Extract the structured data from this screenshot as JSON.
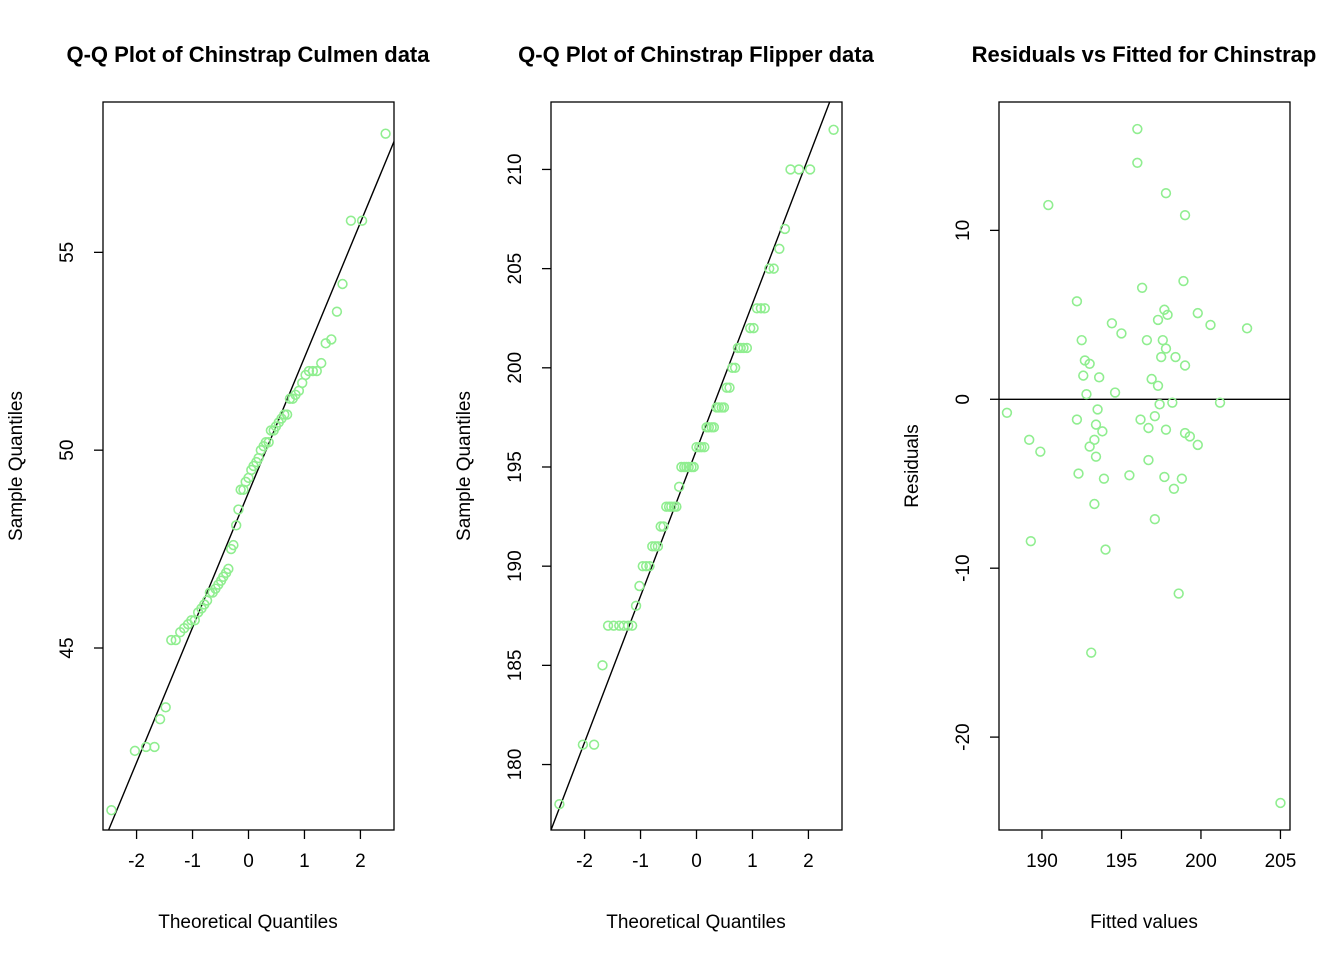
{
  "figure": {
    "point_color": "#90EE90",
    "line_color": "#000000"
  },
  "chart_data": [
    {
      "type": "scatter",
      "id": "culmen",
      "title": "Q-Q Plot of Chinstrap Culmen data",
      "xlabel": "Theoretical Quantiles",
      "ylabel": "Sample Quantiles",
      "xlim": [
        -2.6,
        2.6
      ],
      "ylim": [
        40.4,
        58.8
      ],
      "xticks": [
        -2,
        -1,
        0,
        1,
        2
      ],
      "yticks": [
        45,
        50,
        55
      ],
      "grid": false,
      "ref_line": {
        "kind": "line",
        "x1": -2.5,
        "y1": 40.4,
        "x2": 2.6,
        "y2": 57.8
      },
      "points": [
        [
          -2.45,
          40.9
        ],
        [
          -2.03,
          42.4
        ],
        [
          -1.83,
          42.5
        ],
        [
          -1.68,
          42.5
        ],
        [
          -1.58,
          43.2
        ],
        [
          -1.48,
          43.5
        ],
        [
          -1.38,
          45.2
        ],
        [
          -1.3,
          45.2
        ],
        [
          -1.22,
          45.4
        ],
        [
          -1.15,
          45.5
        ],
        [
          -1.08,
          45.6
        ],
        [
          -1.02,
          45.7
        ],
        [
          -0.96,
          45.7
        ],
        [
          -0.9,
          45.9
        ],
        [
          -0.84,
          46.0
        ],
        [
          -0.79,
          46.1
        ],
        [
          -0.74,
          46.2
        ],
        [
          -0.69,
          46.4
        ],
        [
          -0.64,
          46.4
        ],
        [
          -0.59,
          46.5
        ],
        [
          -0.54,
          46.6
        ],
        [
          -0.49,
          46.7
        ],
        [
          -0.45,
          46.8
        ],
        [
          -0.4,
          46.9
        ],
        [
          -0.36,
          47.0
        ],
        [
          -0.31,
          47.5
        ],
        [
          -0.27,
          47.6
        ],
        [
          -0.22,
          48.1
        ],
        [
          -0.18,
          48.5
        ],
        [
          -0.14,
          49.0
        ],
        [
          -0.09,
          49.0
        ],
        [
          -0.05,
          49.2
        ],
        [
          0.0,
          49.3
        ],
        [
          0.05,
          49.5
        ],
        [
          0.09,
          49.6
        ],
        [
          0.14,
          49.7
        ],
        [
          0.18,
          49.8
        ],
        [
          0.22,
          50.0
        ],
        [
          0.27,
          50.1
        ],
        [
          0.31,
          50.2
        ],
        [
          0.36,
          50.2
        ],
        [
          0.4,
          50.5
        ],
        [
          0.45,
          50.5
        ],
        [
          0.49,
          50.6
        ],
        [
          0.54,
          50.7
        ],
        [
          0.59,
          50.8
        ],
        [
          0.64,
          50.9
        ],
        [
          0.69,
          50.9
        ],
        [
          0.74,
          51.3
        ],
        [
          0.79,
          51.3
        ],
        [
          0.84,
          51.4
        ],
        [
          0.9,
          51.5
        ],
        [
          0.96,
          51.7
        ],
        [
          1.02,
          51.9
        ],
        [
          1.08,
          52.0
        ],
        [
          1.15,
          52.0
        ],
        [
          1.22,
          52.0
        ],
        [
          1.3,
          52.2
        ],
        [
          1.38,
          52.7
        ],
        [
          1.48,
          52.8
        ],
        [
          1.58,
          53.5
        ],
        [
          1.68,
          54.2
        ],
        [
          1.83,
          55.8
        ],
        [
          2.03,
          55.8
        ],
        [
          2.45,
          58.0
        ]
      ]
    },
    {
      "type": "scatter",
      "id": "flipper",
      "title": "Q-Q Plot of Chinstrap Flipper data",
      "xlabel": "Theoretical Quantiles",
      "ylabel": "Sample Quantiles",
      "xlim": [
        -2.6,
        2.6
      ],
      "ylim": [
        176.7,
        213.4
      ],
      "xticks": [
        -2,
        -1,
        0,
        1,
        2
      ],
      "yticks": [
        180,
        185,
        190,
        195,
        200,
        205,
        210
      ],
      "grid": false,
      "ref_line": {
        "kind": "line",
        "x1": -2.6,
        "y1": 176.7,
        "x2": 2.38,
        "y2": 213.4
      },
      "points": [
        [
          -2.45,
          178
        ],
        [
          -2.03,
          181
        ],
        [
          -1.83,
          181
        ],
        [
          -1.68,
          185
        ],
        [
          -1.58,
          187
        ],
        [
          -1.48,
          187
        ],
        [
          -1.38,
          187
        ],
        [
          -1.3,
          187
        ],
        [
          -1.22,
          187
        ],
        [
          -1.15,
          187
        ],
        [
          -1.08,
          188
        ],
        [
          -1.02,
          189
        ],
        [
          -0.96,
          190
        ],
        [
          -0.9,
          190
        ],
        [
          -0.84,
          190
        ],
        [
          -0.79,
          191
        ],
        [
          -0.74,
          191
        ],
        [
          -0.69,
          191
        ],
        [
          -0.64,
          192
        ],
        [
          -0.59,
          192
        ],
        [
          -0.54,
          193
        ],
        [
          -0.49,
          193
        ],
        [
          -0.45,
          193
        ],
        [
          -0.4,
          193
        ],
        [
          -0.36,
          193
        ],
        [
          -0.31,
          194
        ],
        [
          -0.27,
          195
        ],
        [
          -0.22,
          195
        ],
        [
          -0.18,
          195
        ],
        [
          -0.14,
          195
        ],
        [
          -0.09,
          195
        ],
        [
          -0.05,
          195
        ],
        [
          0.0,
          196
        ],
        [
          0.05,
          196
        ],
        [
          0.09,
          196
        ],
        [
          0.14,
          196
        ],
        [
          0.18,
          197
        ],
        [
          0.22,
          197
        ],
        [
          0.27,
          197
        ],
        [
          0.31,
          197
        ],
        [
          0.36,
          198
        ],
        [
          0.4,
          198
        ],
        [
          0.45,
          198
        ],
        [
          0.49,
          198
        ],
        [
          0.54,
          199
        ],
        [
          0.59,
          199
        ],
        [
          0.64,
          200
        ],
        [
          0.69,
          200
        ],
        [
          0.74,
          201
        ],
        [
          0.79,
          201
        ],
        [
          0.84,
          201
        ],
        [
          0.9,
          201
        ],
        [
          0.96,
          202
        ],
        [
          1.02,
          202
        ],
        [
          1.08,
          203
        ],
        [
          1.15,
          203
        ],
        [
          1.22,
          203
        ],
        [
          1.3,
          205
        ],
        [
          1.38,
          205
        ],
        [
          1.48,
          206
        ],
        [
          1.58,
          207
        ],
        [
          1.68,
          210
        ],
        [
          1.83,
          210
        ],
        [
          2.03,
          210
        ],
        [
          2.45,
          212
        ]
      ]
    },
    {
      "type": "scatter",
      "id": "residuals",
      "title": "Residuals vs Fitted for Chinstrap",
      "xlabel": "Fitted values",
      "ylabel": "Residuals",
      "xlim": [
        187.3,
        205.6
      ],
      "ylim": [
        -25.5,
        17.6
      ],
      "xticks": [
        190,
        195,
        200,
        205
      ],
      "yticks": [
        -20,
        -10,
        0,
        10
      ],
      "grid": false,
      "ref_line": {
        "kind": "hline",
        "y": 0
      },
      "points": [
        [
          196.0,
          16.0
        ],
        [
          196.0,
          14.0
        ],
        [
          197.8,
          12.2
        ],
        [
          190.4,
          11.5
        ],
        [
          199.0,
          10.9
        ],
        [
          198.9,
          7.0
        ],
        [
          196.3,
          6.6
        ],
        [
          192.2,
          5.8
        ],
        [
          197.7,
          5.3
        ],
        [
          199.8,
          5.1
        ],
        [
          197.9,
          5.0
        ],
        [
          197.3,
          4.7
        ],
        [
          194.4,
          4.5
        ],
        [
          200.6,
          4.4
        ],
        [
          202.9,
          4.2
        ],
        [
          195.0,
          3.9
        ],
        [
          192.5,
          3.5
        ],
        [
          196.6,
          3.5
        ],
        [
          197.6,
          3.5
        ],
        [
          197.8,
          3.0
        ],
        [
          192.7,
          2.3
        ],
        [
          198.4,
          2.5
        ],
        [
          197.5,
          2.5
        ],
        [
          193.0,
          2.1
        ],
        [
          199.0,
          2.0
        ],
        [
          192.6,
          1.4
        ],
        [
          193.6,
          1.3
        ],
        [
          196.9,
          1.2
        ],
        [
          197.3,
          0.8
        ],
        [
          194.6,
          0.4
        ],
        [
          192.8,
          0.3
        ],
        [
          201.2,
          -0.2
        ],
        [
          198.2,
          -0.2
        ],
        [
          197.4,
          -0.3
        ],
        [
          193.5,
          -0.6
        ],
        [
          187.8,
          -0.8
        ],
        [
          196.2,
          -1.2
        ],
        [
          197.1,
          -1.0
        ],
        [
          192.2,
          -1.2
        ],
        [
          193.4,
          -1.5
        ],
        [
          196.7,
          -1.7
        ],
        [
          197.8,
          -1.8
        ],
        [
          193.8,
          -1.9
        ],
        [
          199.0,
          -2.0
        ],
        [
          199.3,
          -2.2
        ],
        [
          193.3,
          -2.4
        ],
        [
          189.2,
          -2.4
        ],
        [
          199.8,
          -2.7
        ],
        [
          193.0,
          -2.8
        ],
        [
          189.9,
          -3.1
        ],
        [
          193.4,
          -3.4
        ],
        [
          196.7,
          -3.6
        ],
        [
          192.3,
          -4.4
        ],
        [
          195.5,
          -4.5
        ],
        [
          197.7,
          -4.6
        ],
        [
          198.8,
          -4.7
        ],
        [
          193.9,
          -4.7
        ],
        [
          198.3,
          -5.3
        ],
        [
          193.3,
          -6.2
        ],
        [
          197.1,
          -7.1
        ],
        [
          189.3,
          -8.4
        ],
        [
          194.0,
          -8.9
        ],
        [
          198.6,
          -11.5
        ],
        [
          193.1,
          -15.0
        ],
        [
          205.0,
          -23.9
        ]
      ]
    }
  ]
}
